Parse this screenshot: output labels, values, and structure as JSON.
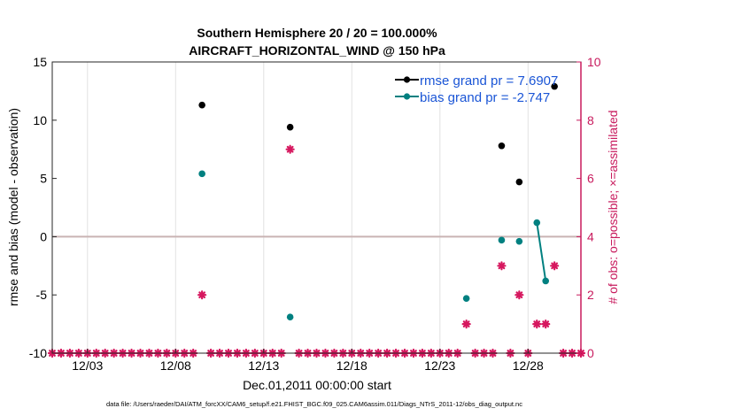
{
  "chart_data": {
    "type": "scatter",
    "title_line1": "Southern Hemisphere 20 / 20 = 100.000%",
    "title_line2": "AIRCRAFT_HORIZONTAL_WIND @ 150 hPa",
    "xlabel": "Dec.01,2011 00:00:00 start",
    "ylabel_left": "rmse and bias (model - observation)",
    "ylabel_right": "# of obs: o=possible; ×=assimilated",
    "footer": "data file: /Users/raeder/DAI/ATM_forcXX/CAM6_setup/f.e21.FHIST_BGC.f09_025.CAM6assim.011/Diags_NTrS_2011-12/obs_diag_output.nc",
    "x_ticks": [
      {
        "day": 3,
        "label": "12/03"
      },
      {
        "day": 8,
        "label": "12/08"
      },
      {
        "day": 13,
        "label": "12/13"
      },
      {
        "day": 18,
        "label": "12/18"
      },
      {
        "day": 23,
        "label": "12/23"
      },
      {
        "day": 28,
        "label": "12/28"
      }
    ],
    "xlim": [
      1,
      31
    ],
    "ylim_left": [
      -10,
      15
    ],
    "y_ticks_left": [
      -10,
      -5,
      0,
      5,
      10,
      15
    ],
    "ylim_right": [
      0,
      10
    ],
    "y_ticks_right": [
      0,
      2,
      4,
      6,
      8,
      10
    ],
    "legend": {
      "position": "top-right",
      "entries": [
        {
          "label": "rmse grand pr = 7.6907",
          "color": "#000000"
        },
        {
          "label": "bias grand pr = -2.747",
          "color": "#008080"
        }
      ]
    },
    "colors": {
      "rmse": "#000000",
      "bias": "#008080",
      "obs": "#d6185f",
      "right_axis": "#c81a5d",
      "zero_line": "#c9b3b3",
      "legend_text": "#1a55d6"
    },
    "series": [
      {
        "name": "rmse",
        "points": [
          {
            "x": 9.5,
            "y": 11.3
          },
          {
            "x": 14.5,
            "y": 9.4
          },
          {
            "x": 26.5,
            "y": 7.8
          },
          {
            "x": 27.5,
            "y": 4.7
          },
          {
            "x": 29.5,
            "y": 12.9
          }
        ]
      },
      {
        "name": "bias",
        "points": [
          {
            "x": 9.5,
            "y": 5.4
          },
          {
            "x": 14.5,
            "y": -6.9
          },
          {
            "x": 24.5,
            "y": -5.3
          },
          {
            "x": 26.5,
            "y": -0.3
          },
          {
            "x": 27.5,
            "y": -0.4
          },
          {
            "x": 28.5,
            "y": 1.2
          },
          {
            "x": 29.0,
            "y": -3.8
          }
        ],
        "connected_segments": [
          [
            5,
            6
          ]
        ]
      },
      {
        "name": "obs_assimilated",
        "axis": "right",
        "nonzero": [
          {
            "x": 9.5,
            "y": 2
          },
          {
            "x": 14.5,
            "y": 7
          },
          {
            "x": 24.5,
            "y": 1
          },
          {
            "x": 26.5,
            "y": 3
          },
          {
            "x": 27.5,
            "y": 2
          },
          {
            "x": 28.5,
            "y": 1
          },
          {
            "x": 29.0,
            "y": 1
          },
          {
            "x": 29.5,
            "y": 3
          }
        ],
        "zero_x_range": [
          1,
          31
        ],
        "zero_step": 0.5
      }
    ]
  }
}
